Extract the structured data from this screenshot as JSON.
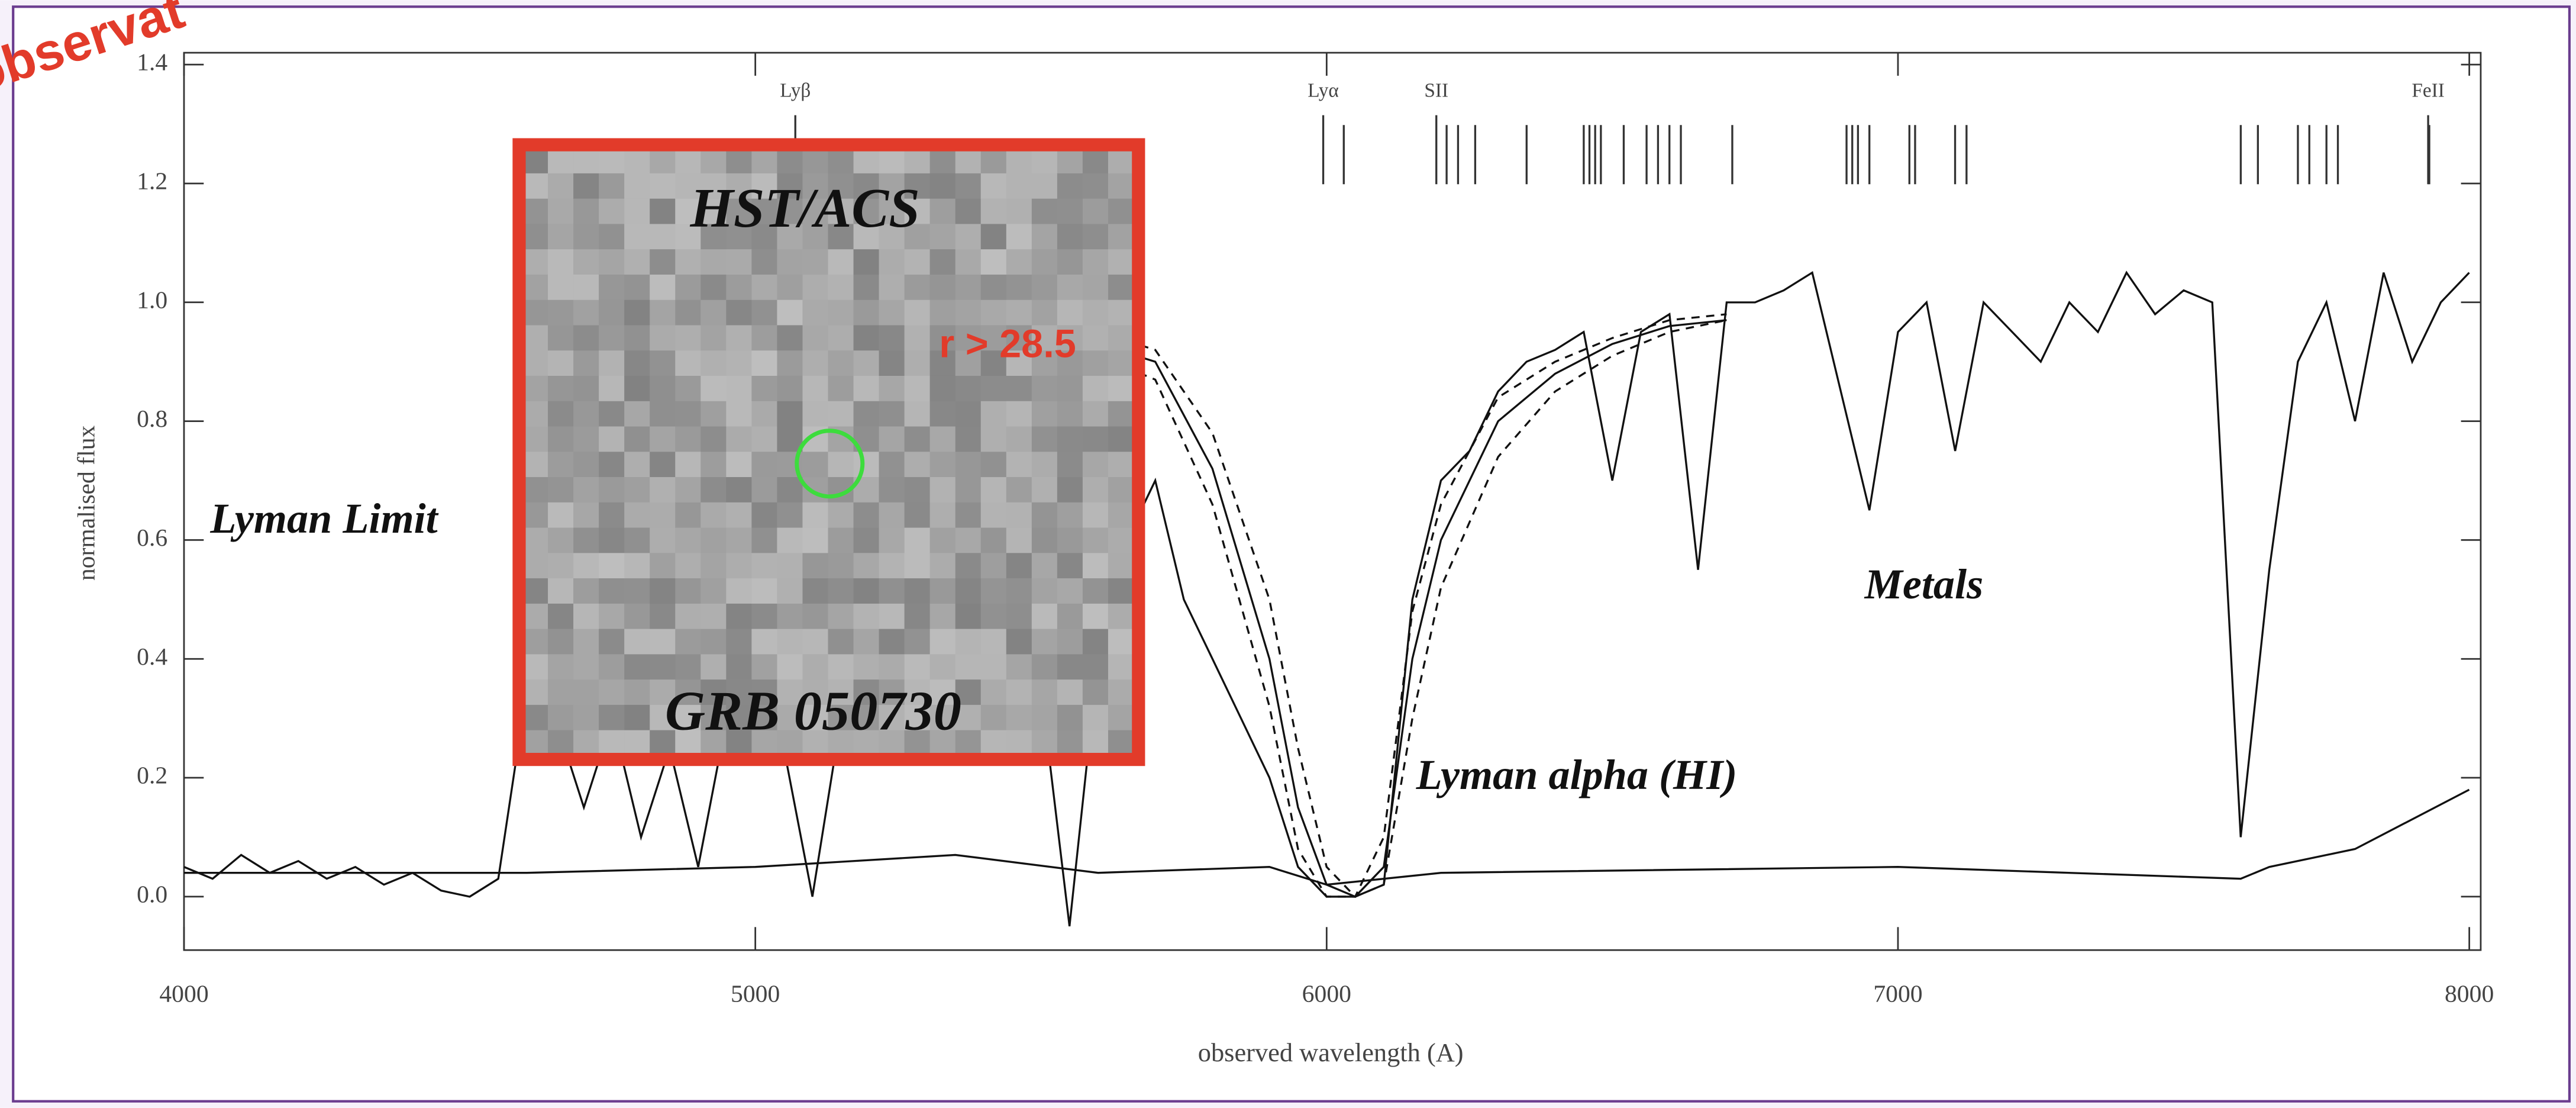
{
  "chart_data": {
    "type": "line",
    "ylabel": "normalised flux",
    "xlabel": "observed wavelength (A)",
    "xlim": [
      4000,
      8020
    ],
    "ylim": [
      -0.09,
      1.42
    ],
    "xticks": [
      4000,
      5000,
      6000,
      7000,
      8000
    ],
    "yticks": [
      {
        "value": 0,
        "label": "0.0"
      },
      0.2,
      0.4,
      0.6,
      0.8,
      {
        "value": 1,
        "label": "1.0"
      },
      1.2,
      1.4
    ],
    "series": [
      {
        "color": "#111111",
        "dash": false,
        "x": [
          4000,
          4050,
          4100,
          4150,
          4200,
          4250,
          4300,
          4350,
          4400,
          4450,
          4500,
          4550,
          4600,
          4650,
          4700,
          4750,
          4800,
          4850,
          4900,
          4950,
          5000,
          5050,
          5100,
          5150,
          5200,
          5250,
          5300,
          5350,
          5400,
          5450,
          5500,
          5550,
          5600,
          5650,
          5700,
          5750,
          5800,
          5850,
          5900,
          5950,
          6000,
          6050,
          6100,
          6150,
          6200,
          6250,
          6300,
          6350,
          6400,
          6450,
          6500,
          6550,
          6600,
          6650,
          6700,
          6750,
          6800,
          6850,
          6900,
          6950,
          7000,
          7050,
          7100,
          7150,
          7200,
          7250,
          7300,
          7350,
          7400,
          7450,
          7500,
          7550,
          7600,
          7650,
          7700,
          7750,
          7800,
          7850,
          7900,
          7950,
          8000
        ],
        "values": [
          0.05,
          0.03,
          0.07,
          0.04,
          0.06,
          0.03,
          0.05,
          0.02,
          0.04,
          0.01,
          0.0,
          0.03,
          0.35,
          0.3,
          0.15,
          0.3,
          0.1,
          0.25,
          0.05,
          0.3,
          0.3,
          0.25,
          0.0,
          0.3,
          0.35,
          0.3,
          0.35,
          0.3,
          0.35,
          0.3,
          0.35,
          -0.05,
          0.4,
          0.6,
          0.7,
          0.5,
          0.4,
          0.3,
          0.2,
          0.05,
          0.0,
          0.0,
          0.02,
          0.5,
          0.7,
          0.75,
          0.85,
          0.9,
          0.92,
          0.95,
          0.7,
          0.95,
          0.98,
          0.55,
          1.0,
          1.0,
          1.02,
          1.05,
          0.85,
          0.65,
          0.95,
          1.0,
          0.75,
          1.0,
          0.95,
          0.9,
          1.0,
          0.95,
          1.05,
          0.98,
          1.02,
          1.0,
          0.1,
          0.55,
          0.9,
          1.0,
          0.8,
          1.05,
          0.9,
          1.0,
          1.05
        ]
      },
      {
        "color": "#111111",
        "dash": false,
        "x": [
          4000,
          4600,
          5000,
          5350,
          5600,
          5900,
          6000,
          6200,
          7000,
          7600,
          7650,
          7800,
          8000
        ],
        "values": [
          0.04,
          0.04,
          0.05,
          0.07,
          0.04,
          0.05,
          0.02,
          0.04,
          0.05,
          0.03,
          0.05,
          0.08,
          0.18
        ]
      },
      {
        "color": "#111111",
        "dash": false,
        "x": [
          5600,
          5700,
          5800,
          5900,
          5950,
          6000,
          6050,
          6100,
          6150,
          6200,
          6300,
          6400,
          6500,
          6600,
          6700
        ],
        "values": [
          0.93,
          0.9,
          0.72,
          0.4,
          0.15,
          0.02,
          0.0,
          0.05,
          0.4,
          0.6,
          0.8,
          0.88,
          0.93,
          0.96,
          0.97
        ]
      },
      {
        "color": "#111111",
        "dash": true,
        "x": [
          5600,
          5700,
          5800,
          5900,
          5950,
          6000,
          6050,
          6100,
          6150,
          6200,
          6300,
          6400,
          6500,
          6600,
          6700
        ],
        "values": [
          0.95,
          0.92,
          0.78,
          0.5,
          0.25,
          0.05,
          0.0,
          0.02,
          0.3,
          0.52,
          0.74,
          0.85,
          0.91,
          0.95,
          0.97
        ]
      },
      {
        "color": "#111111",
        "dash": true,
        "x": [
          5600,
          5700,
          5800,
          5900,
          5950,
          6000,
          6050,
          6100,
          6150,
          6200,
          6300,
          6400,
          6500,
          6600,
          6700
        ],
        "values": [
          0.91,
          0.87,
          0.66,
          0.32,
          0.08,
          0.0,
          0.0,
          0.1,
          0.48,
          0.66,
          0.84,
          0.9,
          0.94,
          0.97,
          0.98
        ]
      }
    ],
    "line_ids": [
      {
        "label": "Lyβ",
        "x": 5070
      },
      {
        "label": "Lyα",
        "x": 5994
      },
      {
        "label": "SII",
        "x": 6192
      },
      {
        "label": "FeII",
        "x": 7928
      }
    ],
    "absorption_ticks": [
      6030,
      6210,
      6230,
      6260,
      6350,
      6450,
      6460,
      6470,
      6480,
      6520,
      6560,
      6580,
      6600,
      6620,
      6710,
      6910,
      6920,
      6930,
      6950,
      7020,
      7030,
      7100,
      7120,
      7600,
      7630,
      7700,
      7720,
      7750,
      7770,
      7930
    ],
    "annotations": [
      "Lyman Limit",
      "Metals",
      "Lyman alpha (HI)"
    ],
    "inset": {
      "title": "HST/ACS",
      "limit": "r > 28.5",
      "object": "GRB 050730"
    },
    "corner_label": "observat"
  }
}
